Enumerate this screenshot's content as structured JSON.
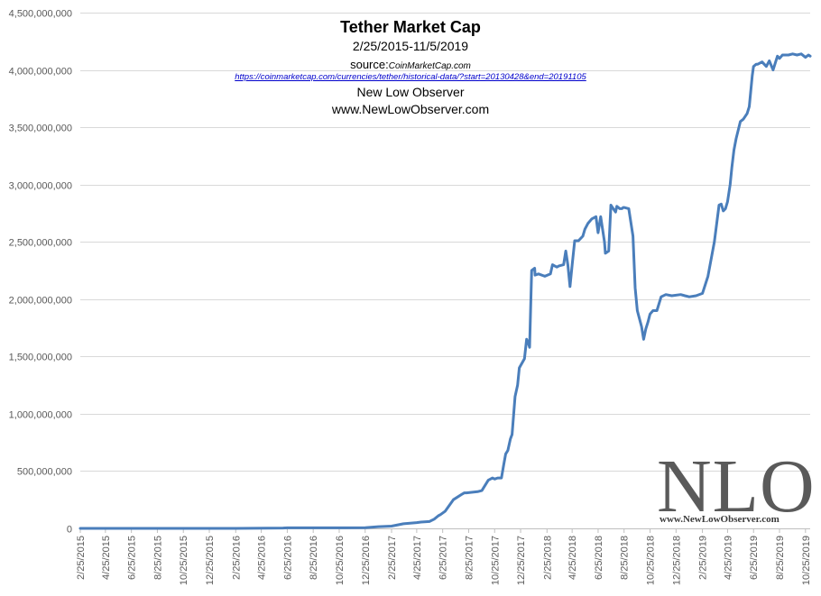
{
  "chart_data": {
    "type": "line",
    "title": "Tether Market Cap",
    "subtitle": "2/25/2015-11/5/2019",
    "source_label": "source:",
    "source_name": "CoinMarketCap.com",
    "source_url": "https://coinmarketcap.com/currencies/tether/historical-data/?start=20130428&end=20191105",
    "author": "New Low Observer",
    "website": "www.NewLowObserver.com",
    "watermark": {
      "letters": "NLO",
      "url": "www.NewLowObserver.com"
    },
    "line_color": "#4a7ebb",
    "grid": true,
    "xlabel": "",
    "ylabel": "",
    "ylim": [
      0,
      4500000000
    ],
    "xlim": [
      "2015-02-25",
      "2019-11-05"
    ],
    "y_ticks": [
      "0",
      "500,000,000",
      "1,000,000,000",
      "1,500,000,000",
      "2,000,000,000",
      "2,500,000,000",
      "3,000,000,000",
      "3,500,000,000",
      "4,000,000,000",
      "4,500,000,000"
    ],
    "y_tick_values": [
      0,
      500000000,
      1000000000,
      1500000000,
      2000000000,
      2500000000,
      3000000000,
      3500000000,
      4000000000,
      4500000000
    ],
    "x_ticks": [
      "2/25/2015",
      "4/25/2015",
      "6/25/2015",
      "8/25/2015",
      "10/25/2015",
      "12/25/2015",
      "2/25/2016",
      "4/25/2016",
      "6/25/2016",
      "8/25/2016",
      "10/25/2016",
      "12/25/2016",
      "2/25/2017",
      "4/25/2017",
      "6/25/2017",
      "8/25/2017",
      "10/25/2017",
      "12/25/2017",
      "2/25/2018",
      "4/25/2018",
      "6/25/2018",
      "8/25/2018",
      "10/25/2018",
      "12/25/2018",
      "2/25/2019",
      "4/25/2019",
      "6/25/2019",
      "8/25/2019",
      "10/25/2019"
    ],
    "x_tick_dates": [
      "2015-02-25",
      "2015-04-25",
      "2015-06-25",
      "2015-08-25",
      "2015-10-25",
      "2015-12-25",
      "2016-02-25",
      "2016-04-25",
      "2016-06-25",
      "2016-08-25",
      "2016-10-25",
      "2016-12-25",
      "2017-02-25",
      "2017-04-25",
      "2017-06-25",
      "2017-08-25",
      "2017-10-25",
      "2017-12-25",
      "2018-02-25",
      "2018-04-25",
      "2018-06-25",
      "2018-08-25",
      "2018-10-25",
      "2018-12-25",
      "2019-02-25",
      "2019-04-25",
      "2019-06-25",
      "2019-08-25",
      "2019-10-25"
    ],
    "series": [
      {
        "x": [
          "2015-02-25",
          "2015-06-25",
          "2015-10-25",
          "2016-02-25",
          "2016-06-15",
          "2016-06-25",
          "2016-10-25",
          "2016-12-25",
          "2017-01-25",
          "2017-02-25",
          "2017-03-25",
          "2017-04-25",
          "2017-05-05",
          "2017-05-25",
          "2017-06-05",
          "2017-06-15",
          "2017-06-20",
          "2017-07-01",
          "2017-07-20",
          "2017-08-10",
          "2017-08-15",
          "2017-08-20",
          "2017-09-15",
          "2017-09-25",
          "2017-10-10",
          "2017-10-20",
          "2017-10-25",
          "2017-11-01",
          "2017-11-10",
          "2017-11-15",
          "2017-11-20",
          "2017-11-25",
          "2017-12-01",
          "2017-12-05",
          "2017-12-12",
          "2017-12-18",
          "2017-12-22",
          "2018-01-03",
          "2018-01-08",
          "2018-01-12",
          "2018-01-15",
          "2018-01-20",
          "2018-01-27",
          "2018-01-28",
          "2018-02-05",
          "2018-02-20",
          "2018-03-05",
          "2018-03-10",
          "2018-03-15",
          "2018-03-20",
          "2018-03-25",
          "2018-04-05",
          "2018-04-10",
          "2018-04-15",
          "2018-04-20",
          "2018-04-25",
          "2018-05-01",
          "2018-05-10",
          "2018-05-20",
          "2018-05-25",
          "2018-06-01",
          "2018-06-10",
          "2018-06-20",
          "2018-06-25",
          "2018-07-01",
          "2018-07-10",
          "2018-07-12",
          "2018-07-20",
          "2018-07-25",
          "2018-08-05",
          "2018-08-08",
          "2018-08-15",
          "2018-08-20",
          "2018-08-23",
          "2018-08-25",
          "2018-09-05",
          "2018-09-15",
          "2018-09-20",
          "2018-09-25",
          "2018-10-05",
          "2018-10-10",
          "2018-10-15",
          "2018-10-20",
          "2018-10-25",
          "2018-11-01",
          "2018-11-10",
          "2018-11-20",
          "2018-12-01",
          "2018-12-15",
          "2019-01-05",
          "2019-01-15",
          "2019-01-25",
          "2019-02-10",
          "2019-02-25",
          "2019-03-10",
          "2019-03-25",
          "2019-04-05",
          "2019-04-10",
          "2019-04-15",
          "2019-04-20",
          "2019-04-25",
          "2019-05-01",
          "2019-05-05",
          "2019-05-10",
          "2019-05-15",
          "2019-05-25",
          "2019-06-01",
          "2019-06-10",
          "2019-06-15",
          "2019-06-22",
          "2019-06-25",
          "2019-07-01",
          "2019-07-05",
          "2019-07-15",
          "2019-07-25",
          "2019-08-01",
          "2019-08-10",
          "2019-08-20",
          "2019-08-25",
          "2019-09-01",
          "2019-09-15",
          "2019-09-25",
          "2019-10-05",
          "2019-10-15",
          "2019-10-25",
          "2019-11-01",
          "2019-11-05"
        ],
        "y": [
          0,
          0,
          0,
          0,
          3000000,
          5000000,
          5000000,
          6000000,
          15000000,
          20000000,
          40000000,
          50000000,
          55000000,
          60000000,
          80000000,
          110000000,
          120000000,
          150000000,
          250000000,
          300000000,
          310000000,
          310000000,
          320000000,
          330000000,
          420000000,
          440000000,
          430000000,
          440000000,
          440000000,
          550000000,
          650000000,
          680000000,
          780000000,
          820000000,
          1150000000,
          1250000000,
          1400000000,
          1480000000,
          1650000000,
          1620000000,
          1580000000,
          2250000000,
          2270000000,
          2210000000,
          2220000000,
          2200000000,
          2220000000,
          2300000000,
          2290000000,
          2280000000,
          2290000000,
          2300000000,
          2420000000,
          2300000000,
          2110000000,
          2300000000,
          2510000000,
          2510000000,
          2550000000,
          2610000000,
          2660000000,
          2700000000,
          2720000000,
          2580000000,
          2720000000,
          2500000000,
          2400000000,
          2420000000,
          2820000000,
          2760000000,
          2810000000,
          2790000000,
          2790000000,
          2800000000,
          2800000000,
          2790000000,
          2550000000,
          2100000000,
          1900000000,
          1760000000,
          1650000000,
          1740000000,
          1800000000,
          1870000000,
          1900000000,
          1900000000,
          2020000000,
          2040000000,
          2030000000,
          2040000000,
          2030000000,
          2020000000,
          2030000000,
          2050000000,
          2200000000,
          2500000000,
          2820000000,
          2830000000,
          2770000000,
          2790000000,
          2850000000,
          3000000000,
          3150000000,
          3300000000,
          3400000000,
          3550000000,
          3570000000,
          3620000000,
          3680000000,
          3950000000,
          4030000000,
          4050000000,
          4050000000,
          4070000000,
          4030000000,
          4080000000,
          4000000000,
          4120000000,
          4100000000,
          4130000000,
          4130000000,
          4140000000,
          4130000000,
          4140000000,
          4110000000,
          4130000000,
          4120000000
        ]
      }
    ]
  }
}
